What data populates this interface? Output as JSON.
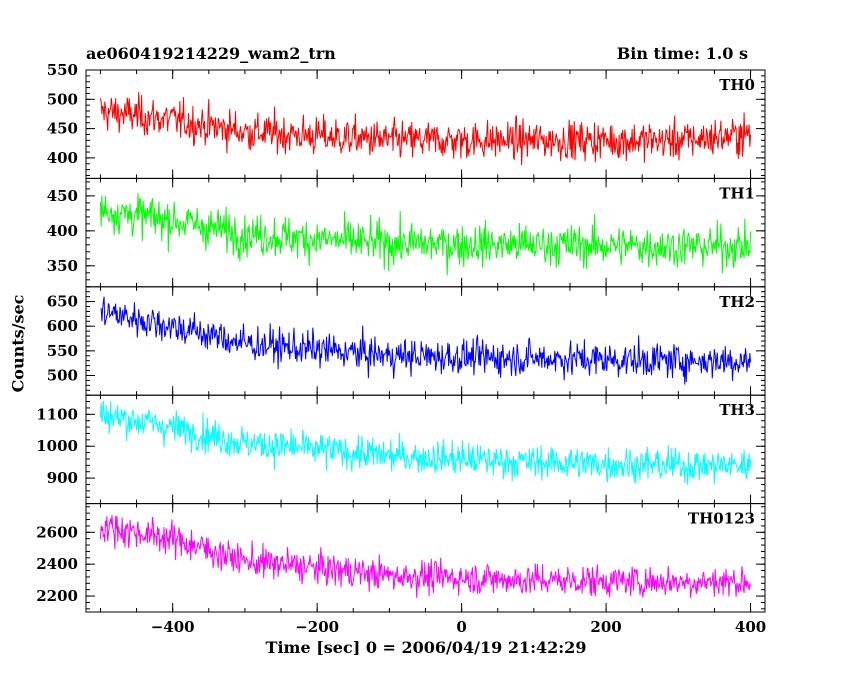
{
  "header": {
    "source": "ae060419214229_wam2_trn",
    "bin_time": "Bin time: 1.0 s"
  },
  "axes": {
    "ylabel": "Counts/sec",
    "xlabel": "Time [sec] 0 = 2006/04/19 21:42:29"
  },
  "chart_data": {
    "type": "line",
    "x_range": [
      -520,
      420
    ],
    "x_ticks": [
      -400,
      -200,
      0,
      200,
      400
    ],
    "x_tick_labels": [
      "−400",
      "−200",
      "0",
      "200",
      "400"
    ],
    "x_step": 1.0,
    "panels": [
      {
        "name": "TH0",
        "color": "#ff0000",
        "ylim": [
          365,
          550
        ],
        "yticks": [
          400,
          450,
          500,
          550
        ],
        "ytick_labels": [
          "400",
          "450",
          "500",
          "550"
        ],
        "trend": [
          [
            -500,
            480
          ],
          [
            -400,
            465
          ],
          [
            -300,
            445
          ],
          [
            -100,
            430
          ],
          [
            100,
            430
          ],
          [
            300,
            430
          ],
          [
            400,
            440
          ]
        ],
        "noise": 28
      },
      {
        "name": "TH1",
        "color": "#00ff00",
        "ylim": [
          320,
          475
        ],
        "yticks": [
          350,
          400,
          450
        ],
        "ytick_labels": [
          "350",
          "400",
          "450"
        ],
        "trend": [
          [
            -500,
            430
          ],
          [
            -400,
            415
          ],
          [
            -300,
            395
          ],
          [
            -100,
            382
          ],
          [
            100,
            380
          ],
          [
            300,
            378
          ],
          [
            400,
            378
          ]
        ],
        "noise": 25
      },
      {
        "name": "TH2",
        "color": "#0000ff",
        "ylim": [
          460,
          680
        ],
        "yticks": [
          500,
          550,
          600,
          650
        ],
        "ytick_labels": [
          "500",
          "550",
          "600",
          "650"
        ],
        "trend": [
          [
            -500,
            630
          ],
          [
            -400,
            600
          ],
          [
            -300,
            565
          ],
          [
            -100,
            540
          ],
          [
            100,
            535
          ],
          [
            300,
            530
          ],
          [
            400,
            530
          ]
        ],
        "noise": 30
      },
      {
        "name": "TH3",
        "color": "#00ffff",
        "ylim": [
          820,
          1160
        ],
        "yticks": [
          900,
          1000,
          1100
        ],
        "ytick_labels": [
          "900",
          "1000",
          "1100"
        ],
        "trend": [
          [
            -500,
            1100
          ],
          [
            -400,
            1060
          ],
          [
            -300,
            1010
          ],
          [
            -100,
            970
          ],
          [
            100,
            950
          ],
          [
            300,
            940
          ],
          [
            400,
            940
          ]
        ],
        "noise": 45
      },
      {
        "name": "TH0123",
        "color": "#ff00ff",
        "ylim": [
          2100,
          2780
        ],
        "yticks": [
          2200,
          2400,
          2600
        ],
        "ytick_labels": [
          "2200",
          "2400",
          "2600"
        ],
        "trend": [
          [
            -500,
            2640
          ],
          [
            -400,
            2560
          ],
          [
            -300,
            2420
          ],
          [
            -100,
            2330
          ],
          [
            100,
            2300
          ],
          [
            300,
            2290
          ],
          [
            400,
            2290
          ]
        ],
        "noise": 85
      }
    ]
  }
}
